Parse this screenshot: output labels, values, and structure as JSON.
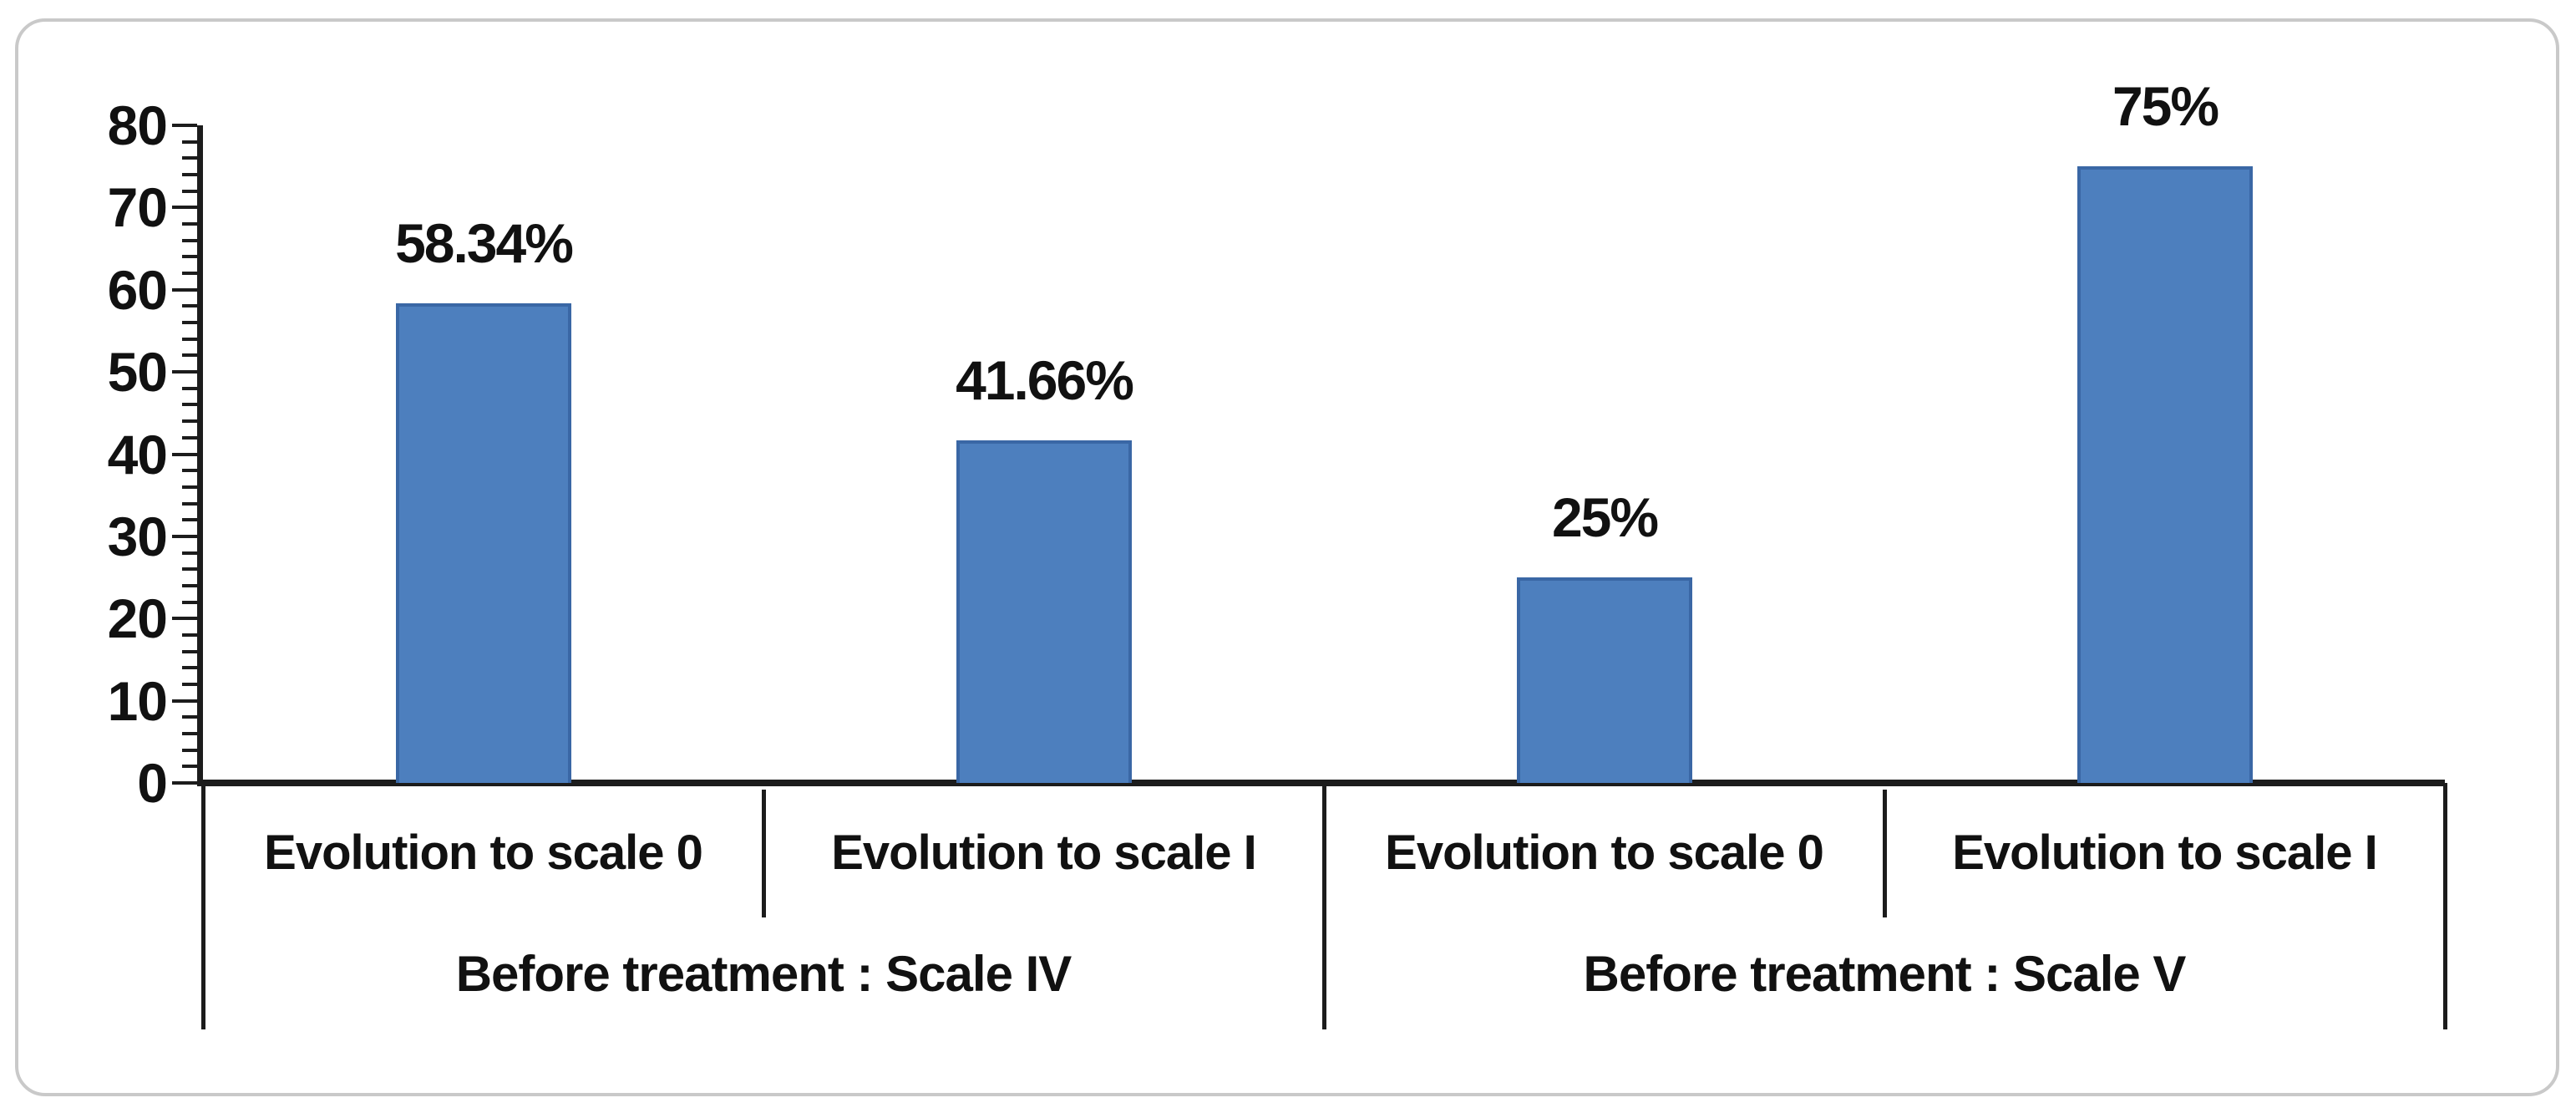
{
  "chart_data": {
    "type": "bar",
    "title": "",
    "xlabel": "",
    "ylabel": "",
    "ylim": [
      0,
      80
    ],
    "y_ticks": [
      0,
      10,
      20,
      30,
      40,
      50,
      60,
      70,
      80
    ],
    "minor_tick_step": 2,
    "grid": "off",
    "legend": "none",
    "bar_color": "#4d7fbe",
    "bar_border_color": "#3a67a5",
    "axis_color": "#1c1c1c",
    "categories": [
      "Evolution to scale 0",
      "Evolution to scale I",
      "Evolution to scale 0",
      "Evolution to scale I"
    ],
    "groups": [
      {
        "label": "Before treatment : Scale IV",
        "span": [
          0,
          2
        ]
      },
      {
        "label": "Before treatment : Scale V",
        "span": [
          2,
          4
        ]
      }
    ],
    "values": [
      58.34,
      41.66,
      25,
      75
    ],
    "data_labels": [
      "58.34%",
      "41.66%",
      "25%",
      "75%"
    ]
  }
}
